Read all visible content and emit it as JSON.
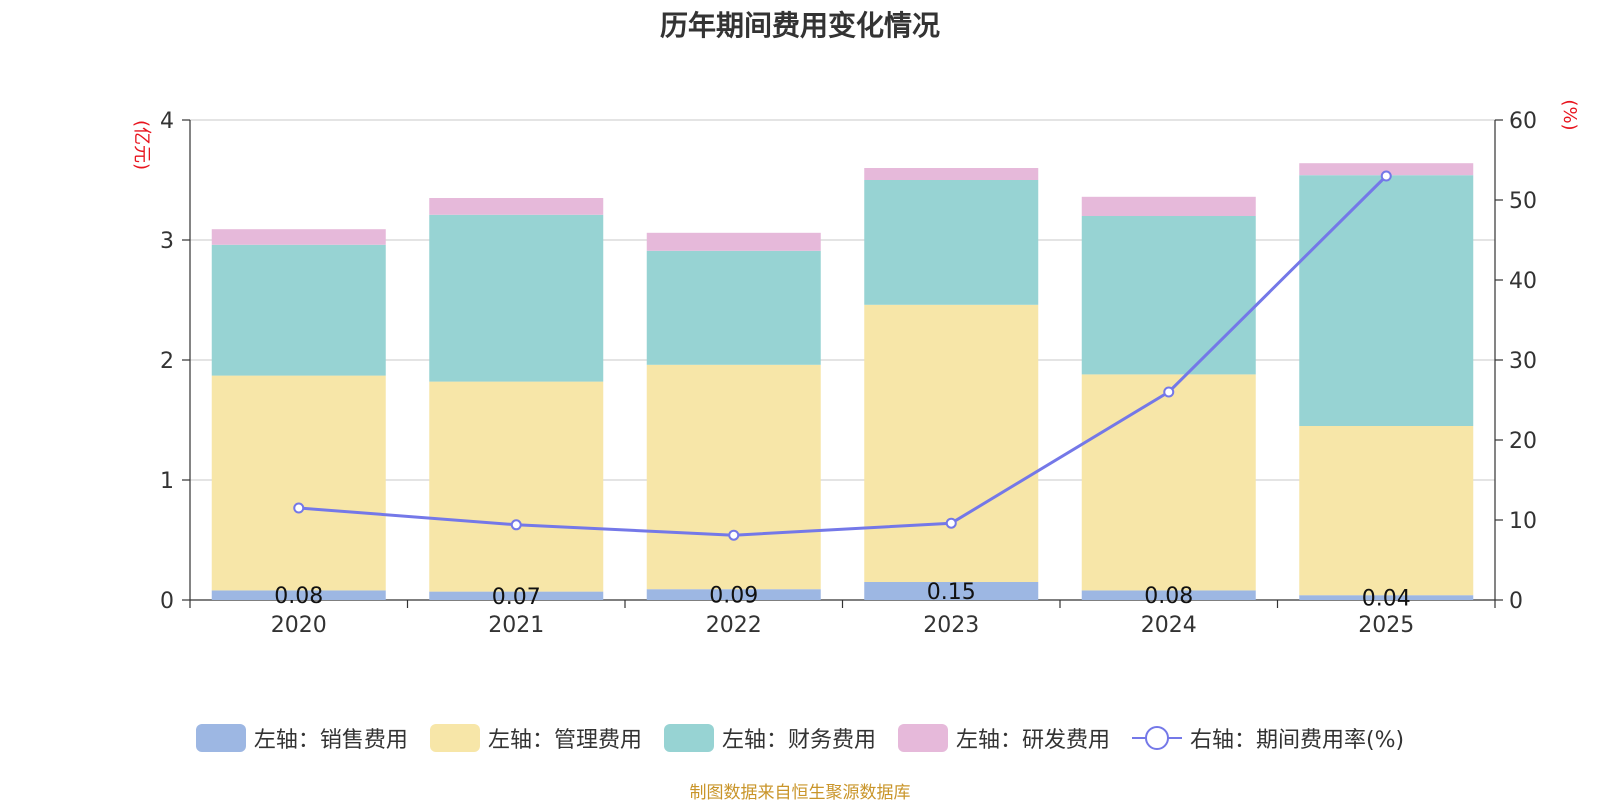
{
  "chart_data": {
    "type": "bar",
    "stacked": true,
    "title": "历年期间费用变化情况",
    "categories": [
      "2020",
      "2021",
      "2022",
      "2023",
      "2024",
      "2025"
    ],
    "left_axis": {
      "unit": "(亿元)",
      "ylim": [
        0,
        4
      ],
      "ticks": [
        0,
        1,
        2,
        3,
        4
      ]
    },
    "right_axis": {
      "unit": "(%)",
      "ylim": [
        0,
        60
      ],
      "ticks": [
        0,
        10,
        20,
        30,
        40,
        50,
        60
      ]
    },
    "series": [
      {
        "name": "左轴：销售费用",
        "axis": "left",
        "type": "bar",
        "color": "#9db7e3",
        "values": [
          0.08,
          0.07,
          0.09,
          0.15,
          0.08,
          0.04
        ],
        "labels": [
          "0.08",
          "0.07",
          "0.09",
          "0.15",
          "0.08",
          "0.04"
        ]
      },
      {
        "name": "左轴：管理费用",
        "axis": "left",
        "type": "bar",
        "color": "#f7e6a8",
        "values": [
          1.79,
          1.75,
          1.87,
          2.31,
          1.8,
          1.41
        ]
      },
      {
        "name": "左轴：财务费用",
        "axis": "left",
        "type": "bar",
        "color": "#97d3d3",
        "values": [
          1.09,
          1.39,
          0.95,
          1.04,
          1.32,
          2.09
        ]
      },
      {
        "name": "左轴：研发费用",
        "axis": "left",
        "type": "bar",
        "color": "#e6b9da",
        "values": [
          0.13,
          0.14,
          0.15,
          0.1,
          0.16,
          0.1
        ]
      },
      {
        "name": "右轴：期间费用率(%)",
        "axis": "right",
        "type": "line",
        "color": "#7478e8",
        "values": [
          11.5,
          9.4,
          8.1,
          9.6,
          26.0,
          53.0
        ]
      }
    ]
  },
  "source_note": "制图数据来自恒生聚源数据库"
}
